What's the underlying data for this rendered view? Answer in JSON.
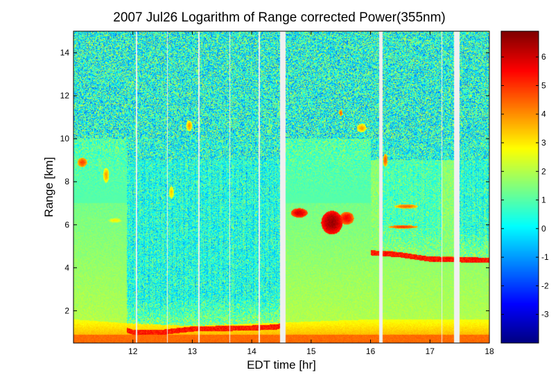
{
  "chart_data": {
    "type": "heatmap",
    "title": "2007 Jul26  Logarithm of Range corrected Power(355nm)",
    "xlabel": "EDT time [hr]",
    "ylabel": "Range [km]",
    "xlim": [
      11.0,
      18.0
    ],
    "ylim": [
      0.5,
      15.0
    ],
    "xticks": [
      12,
      13,
      14,
      15,
      16,
      17,
      18
    ],
    "yticks": [
      2,
      4,
      6,
      8,
      10,
      12,
      14
    ],
    "colorbar": {
      "colormap": "jet",
      "lim": [
        -4.0,
        6.9
      ],
      "ticks": [
        -3,
        -2,
        -1,
        0,
        1,
        2,
        3,
        4,
        5,
        6
      ]
    },
    "data_gaps": [
      {
        "start": 12.05,
        "end": 12.07
      },
      {
        "start": 12.57,
        "end": 12.59
      },
      {
        "start": 13.1,
        "end": 13.12
      },
      {
        "start": 13.62,
        "end": 13.64
      },
      {
        "start": 14.12,
        "end": 14.14
      },
      {
        "start": 14.48,
        "end": 14.57
      },
      {
        "start": 15.02,
        "end": 15.03
      },
      {
        "start": 16.14,
        "end": 16.2
      },
      {
        "start": 17.19,
        "end": 17.21
      },
      {
        "start": 17.4,
        "end": 17.5
      }
    ],
    "features": {
      "surface_layer_value": 4.0,
      "boundary_layer_top_km": [
        {
          "t": 11.0,
          "h": 1.6
        },
        {
          "t": 12.0,
          "h": 1.4
        },
        {
          "t": 13.0,
          "h": 1.3
        },
        {
          "t": 14.0,
          "h": 1.4
        },
        {
          "t": 15.0,
          "h": 1.5
        },
        {
          "t": 16.0,
          "h": 1.6
        },
        {
          "t": 17.0,
          "h": 1.6
        },
        {
          "t": 18.0,
          "h": 1.6
        }
      ],
      "free_troposphere_value": 1.6,
      "upper_noise_value": 0.4,
      "clear_region_start_km": 1.1,
      "cloud_base_km": [
        {
          "t": 11.9,
          "h": 1.1
        },
        {
          "t": 12.0,
          "h": 1.0
        },
        {
          "t": 12.5,
          "h": 1.0
        },
        {
          "t": 13.0,
          "h": 1.15
        },
        {
          "t": 14.0,
          "h": 1.2
        },
        {
          "t": 14.45,
          "h": 1.25
        },
        {
          "t": 16.0,
          "h": 4.7
        },
        {
          "t": 16.5,
          "h": 4.6
        },
        {
          "t": 17.0,
          "h": 4.4
        },
        {
          "t": 18.0,
          "h": 4.35
        }
      ],
      "clouds": [
        {
          "t": 15.35,
          "h": 6.1,
          "dt": 0.18,
          "dh": 0.55,
          "value": 6.6
        },
        {
          "t": 14.8,
          "h": 6.55,
          "dt": 0.14,
          "dh": 0.22,
          "value": 6.0
        },
        {
          "t": 15.6,
          "h": 6.3,
          "dt": 0.12,
          "dh": 0.3,
          "value": 5.6
        },
        {
          "t": 11.15,
          "h": 8.9,
          "dt": 0.08,
          "dh": 0.22,
          "value": 4.8
        },
        {
          "t": 11.55,
          "h": 8.3,
          "dt": 0.05,
          "dh": 0.35,
          "value": 3.8
        },
        {
          "t": 12.95,
          "h": 10.6,
          "dt": 0.05,
          "dh": 0.25,
          "value": 3.9
        },
        {
          "t": 15.85,
          "h": 10.5,
          "dt": 0.08,
          "dh": 0.2,
          "value": 3.8
        },
        {
          "t": 16.25,
          "h": 9.0,
          "dt": 0.04,
          "dh": 0.3,
          "value": 4.6
        },
        {
          "t": 16.6,
          "h": 6.85,
          "dt": 0.2,
          "dh": 0.1,
          "value": 4.5
        },
        {
          "t": 16.55,
          "h": 5.9,
          "dt": 0.25,
          "dh": 0.08,
          "value": 5.0
        },
        {
          "t": 16.3,
          "h": 4.7,
          "dt": 0.15,
          "dh": 0.08,
          "value": 5.5
        },
        {
          "t": 17.3,
          "h": 4.45,
          "dt": 0.15,
          "dh": 0.08,
          "value": 5.5
        },
        {
          "t": 17.75,
          "h": 4.4,
          "dt": 0.25,
          "dh": 0.08,
          "value": 5.5
        },
        {
          "t": 12.65,
          "h": 7.5,
          "dt": 0.04,
          "dh": 0.3,
          "value": 3.4
        },
        {
          "t": 11.7,
          "h": 6.2,
          "dt": 0.12,
          "dh": 0.12,
          "value": 3.0
        },
        {
          "t": 15.5,
          "h": 11.2,
          "dt": 0.03,
          "dh": 0.15,
          "value": 4.5
        }
      ]
    }
  }
}
